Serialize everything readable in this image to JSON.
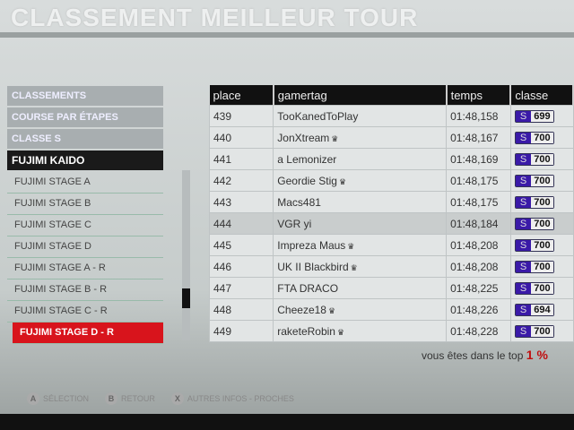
{
  "title": "CLASSEMENT MEILLEUR TOUR",
  "menu": {
    "categories": [
      "CLASSEMENTS",
      "COURSE PAR ÉTAPES",
      "CLASSE S",
      "FUJIMI KAIDO"
    ],
    "items": [
      "FUJIMI STAGE A",
      "FUJIMI STAGE B",
      "FUJIMI STAGE C",
      "FUJIMI STAGE D",
      "FUJIMI STAGE A - R",
      "FUJIMI STAGE B - R",
      "FUJIMI STAGE C - R",
      "FUJIMI STAGE D - R"
    ]
  },
  "table": {
    "headers": [
      "place",
      "gamertag",
      "temps",
      "classe"
    ],
    "rows": [
      {
        "place": "439",
        "gamertag": "TooKanedToPlay",
        "crown": false,
        "temps": "01:48,158",
        "class": "S",
        "pi": "699"
      },
      {
        "place": "440",
        "gamertag": "JonXtream",
        "crown": true,
        "temps": "01:48,167",
        "class": "S",
        "pi": "700"
      },
      {
        "place": "441",
        "gamertag": "a Lemonizer",
        "crown": false,
        "temps": "01:48,169",
        "class": "S",
        "pi": "700"
      },
      {
        "place": "442",
        "gamertag": "Geordie Stig",
        "crown": true,
        "temps": "01:48,175",
        "class": "S",
        "pi": "700"
      },
      {
        "place": "443",
        "gamertag": "Macs481",
        "crown": false,
        "temps": "01:48,175",
        "class": "S",
        "pi": "700"
      },
      {
        "place": "444",
        "gamertag": "VGR yi",
        "crown": false,
        "temps": "01:48,184",
        "class": "S",
        "pi": "700"
      },
      {
        "place": "445",
        "gamertag": "Impreza Maus",
        "crown": true,
        "temps": "01:48,208",
        "class": "S",
        "pi": "700"
      },
      {
        "place": "446",
        "gamertag": "UK II Blackbird",
        "crown": true,
        "temps": "01:48,208",
        "class": "S",
        "pi": "700"
      },
      {
        "place": "447",
        "gamertag": "FTA DRACO",
        "crown": false,
        "temps": "01:48,225",
        "class": "S",
        "pi": "700"
      },
      {
        "place": "448",
        "gamertag": "Cheeze18",
        "crown": true,
        "temps": "01:48,226",
        "class": "S",
        "pi": "694"
      },
      {
        "place": "449",
        "gamertag": "raketeRobin",
        "crown": true,
        "temps": "01:48,228",
        "class": "S",
        "pi": "700"
      }
    ]
  },
  "top": {
    "label": "vous êtes dans le top",
    "value": "1 %"
  },
  "footer": [
    {
      "key": "A",
      "label": "SÉLECTION"
    },
    {
      "key": "B",
      "label": "RETOUR"
    },
    {
      "key": "X",
      "label": "AUTRES INFOS - PROCHES"
    }
  ],
  "colors": {
    "accent": "#d8141c",
    "class_s": "#3a1aa8"
  }
}
